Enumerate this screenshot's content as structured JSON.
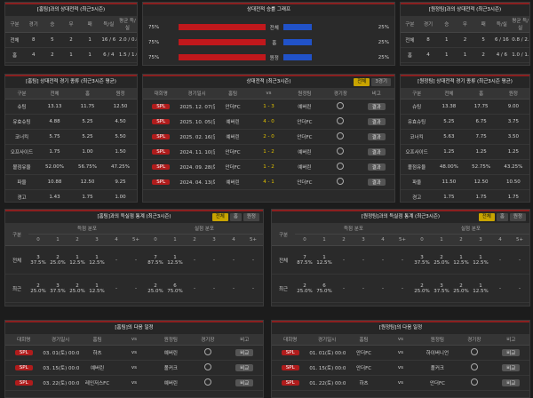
{
  "h2h_home": {
    "title": "[홈팀]과의 상대전적 (최근3시즌)",
    "header": [
      "구분",
      "경기",
      "승",
      "무",
      "패",
      "득/실",
      "평균 득/실"
    ],
    "rows": [
      [
        "전체",
        "8",
        "5",
        "2",
        "1",
        "16 / 6",
        "2.0 / 0.8"
      ],
      [
        "홈",
        "4",
        "2",
        "1",
        "1",
        "6 / 4",
        "1.5 / 1.0"
      ],
      [
        "원정",
        "4",
        "3",
        "1",
        "0",
        "10 / 2",
        "2.5 / 0.5"
      ]
    ]
  },
  "win_graph": {
    "title": "상대전적 승률 그래프",
    "rows": [
      {
        "home_label": "75%",
        "home": 75,
        "name": "전체",
        "away": 25,
        "away_label": "25%"
      },
      {
        "home_label": "75%",
        "home": 75,
        "name": "홈",
        "away": 25,
        "away_label": "25%"
      },
      {
        "home_label": "75%",
        "home": 75,
        "name": "원정",
        "away": 25,
        "away_label": "25%"
      }
    ]
  },
  "h2h_away": {
    "title": "[원정팀]과의 상대전적 (최근3시즌)",
    "header": [
      "구분",
      "경기",
      "승",
      "무",
      "패",
      "득/실",
      "평균 득/실"
    ],
    "rows": [
      [
        "전체",
        "8",
        "1",
        "2",
        "5",
        "6 / 16",
        "0.8 / 2.0"
      ],
      [
        "홈",
        "4",
        "1",
        "1",
        "2",
        "4 / 6",
        "1.0 / 1.5"
      ],
      [
        "원정",
        "4",
        "0",
        "1",
        "3",
        "2 / 10",
        "0.5 / 2.5"
      ]
    ]
  },
  "stats_home": {
    "title": "[홈팀] 상대전적 경기 종류 (최근3시즌 평균)",
    "header": [
      "구분",
      "전체",
      "홈",
      "원정"
    ],
    "rows": [
      [
        "슈팅",
        "13.13",
        "11.75",
        "12.50"
      ],
      [
        "유효슈팅",
        "4.88",
        "5.25",
        "4.50"
      ],
      [
        "코너킥",
        "5.75",
        "5.25",
        "5.50"
      ],
      [
        "오프사이드",
        "1.75",
        "1.00",
        "1.50"
      ],
      [
        "볼점유율",
        "52.00%",
        "56.75%",
        "47.25%"
      ],
      [
        "파울",
        "10.88",
        "12.50",
        "9.25"
      ],
      [
        "경고",
        "1.43",
        "1.75",
        "1.00"
      ],
      [
        "퇴장",
        "0.33",
        "0.00",
        "0.00"
      ]
    ]
  },
  "recent": {
    "title": "상대전적 (최근3시즌)",
    "tabs": [
      "전체",
      "3경기"
    ],
    "header": [
      "대회명",
      "경기일시",
      "홈팀",
      "vs",
      "원정팀",
      "경기장",
      "비고"
    ],
    "rows": [
      {
        "comp": "SPL",
        "date": "2025. 12. 07(일)",
        "home": "안더FC",
        "score": "1 - 3",
        "away": "예버린",
        "note": "결과"
      },
      {
        "comp": "SPL",
        "date": "2025. 10. 05(일)",
        "home": "예버린",
        "score": "4 - 0",
        "away": "안더FC",
        "note": "결과"
      },
      {
        "comp": "SPL",
        "date": "2025. 02. 16(일)",
        "home": "예버린",
        "score": "2 - 0",
        "away": "안더FC",
        "note": "결과"
      },
      {
        "comp": "SPL",
        "date": "2024. 11. 10(일)",
        "home": "안더FC",
        "score": "1 - 2",
        "away": "예버린",
        "note": "결과"
      },
      {
        "comp": "SPL",
        "date": "2024. 09. 28(토)",
        "home": "안더FC",
        "score": "1 - 2",
        "away": "예버린",
        "note": "결과"
      },
      {
        "comp": "SPL",
        "date": "2024. 04. 13(토)",
        "home": "예버린",
        "score": "4 - 1",
        "away": "안더FC",
        "note": "결과"
      }
    ]
  },
  "stats_away": {
    "title": "[원정팀] 상대전적 경기 종류 (최근3시즌 평균)",
    "header": [
      "구분",
      "전체",
      "홈",
      "원정"
    ],
    "rows": [
      [
        "슈팅",
        "13.38",
        "17.75",
        "9.00"
      ],
      [
        "유효슈팅",
        "5.25",
        "6.75",
        "3.75"
      ],
      [
        "코너킥",
        "5.63",
        "7.75",
        "3.50"
      ],
      [
        "오프사이드",
        "1.25",
        "1.25",
        "1.25"
      ],
      [
        "볼점유율",
        "48.00%",
        "52.75%",
        "43.25%"
      ],
      [
        "파울",
        "11.50",
        "12.50",
        "10.50"
      ],
      [
        "경고",
        "1.75",
        "1.75",
        "1.75"
      ],
      [
        "퇴장",
        "0.00",
        "0.00",
        "0.00"
      ]
    ]
  },
  "goals_home": {
    "title": "[홈팀]과의 득실점 통계 (최근3시즌)",
    "tabs": [
      "전체",
      "홈",
      "원정"
    ],
    "group": "구분",
    "scored": "득점 분포",
    "conceded": "실점 분포",
    "sub": [
      "0",
      "1",
      "2",
      "3",
      "4",
      "5+"
    ],
    "rows": [
      {
        "name": "전체",
        "cells": [
          [
            "3",
            "37.5%"
          ],
          [
            "2",
            "25.0%"
          ],
          [
            "1",
            "12.5%"
          ],
          [
            "1",
            "12.5%"
          ],
          [
            "-",
            ""
          ],
          [
            "-",
            ""
          ],
          [
            "7",
            "87.5%"
          ],
          [
            "1",
            "12.5%"
          ],
          [
            "-",
            ""
          ],
          [
            "-",
            ""
          ],
          [
            "-",
            ""
          ],
          [
            "-",
            ""
          ]
        ]
      },
      {
        "name": "최근",
        "cells": [
          [
            "2",
            "25.0%"
          ],
          [
            "3",
            "37.5%"
          ],
          [
            "2",
            "25.0%"
          ],
          [
            "1",
            "12.5%"
          ],
          [
            "-",
            ""
          ],
          [
            "-",
            ""
          ],
          [
            "2",
            "25.0%"
          ],
          [
            "6",
            "75.0%"
          ],
          [
            "-",
            ""
          ],
          [
            "-",
            ""
          ],
          [
            "-",
            ""
          ],
          [
            "-",
            ""
          ]
        ]
      }
    ]
  },
  "goals_away": {
    "title": "[원정팀]과의 득실점 통계 (최근3시즌)",
    "tabs": [
      "전체",
      "홈",
      "원정"
    ],
    "group": "구분",
    "scored": "득점 분포",
    "conceded": "실점 분포",
    "sub": [
      "0",
      "1",
      "2",
      "3",
      "4",
      "5+"
    ],
    "rows": [
      {
        "name": "전체",
        "cells": [
          [
            "7",
            "87.5%"
          ],
          [
            "1",
            "12.5%"
          ],
          [
            "-",
            ""
          ],
          [
            "-",
            ""
          ],
          [
            "-",
            ""
          ],
          [
            "-",
            ""
          ],
          [
            "3",
            "37.5%"
          ],
          [
            "2",
            "25.0%"
          ],
          [
            "1",
            "12.5%"
          ],
          [
            "1",
            "12.5%"
          ],
          [
            "-",
            ""
          ],
          [
            "-",
            ""
          ]
        ]
      },
      {
        "name": "최근",
        "cells": [
          [
            "2",
            "25.0%"
          ],
          [
            "6",
            "75.0%"
          ],
          [
            "-",
            ""
          ],
          [
            "-",
            ""
          ],
          [
            "-",
            ""
          ],
          [
            "-",
            ""
          ],
          [
            "2",
            "25.0%"
          ],
          [
            "3",
            "37.5%"
          ],
          [
            "2",
            "25.0%"
          ],
          [
            "1",
            "12.5%"
          ],
          [
            "-",
            ""
          ],
          [
            "-",
            ""
          ]
        ]
      }
    ]
  },
  "next_home": {
    "title": "[홈팀]의 다음 일정",
    "vs": "vs",
    "header": [
      "대회명",
      "경기일시",
      "홈팀",
      "vs",
      "원정팀",
      "경기장",
      "비고"
    ],
    "rows": [
      {
        "comp": "SPL",
        "date": "03. 01(토) 00:00",
        "home": "하츠",
        "away": "예버린",
        "note": "비교"
      },
      {
        "comp": "SPL",
        "date": "03. 15(토) 00:00",
        "home": "예버린",
        "away": "폴커크",
        "note": "비교"
      },
      {
        "comp": "SPL",
        "date": "03. 22(토) 00:00",
        "home": "레인저스FC",
        "away": "예버린",
        "note": "비교"
      }
    ]
  },
  "next_away": {
    "title": "[원정팀]의 다음 일정",
    "vs": "vs",
    "header": [
      "대회명",
      "경기일시",
      "홈팀",
      "vs",
      "원정팀",
      "경기장",
      "비고"
    ],
    "rows": [
      {
        "comp": "SPL",
        "date": "01. 01(토) 00:00",
        "home": "안더FC",
        "away": "하이버니언",
        "note": "비교"
      },
      {
        "comp": "SPL",
        "date": "01. 15(토) 00:00",
        "home": "안더FC",
        "away": "폴커크",
        "note": "비교"
      },
      {
        "comp": "SPL",
        "date": "01. 22(토) 00:00",
        "home": "하츠",
        "away": "안더FC",
        "note": "비교"
      }
    ]
  }
}
